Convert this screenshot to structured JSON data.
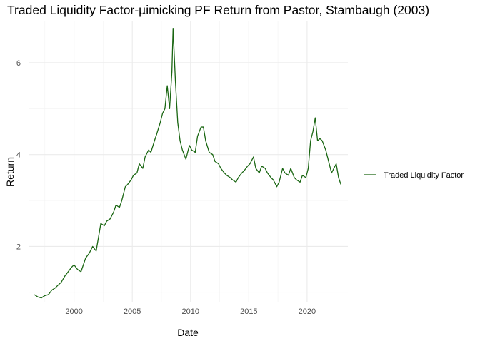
{
  "chart_data": {
    "type": "line",
    "title": "Traded Liquidity Factor-µimicking PF Return from Pastor, Stambaugh (2003)",
    "xlabel": "Date",
    "ylabel": "Return",
    "x_ticks": [
      "2000",
      "2005",
      "2010",
      "2015",
      "2020"
    ],
    "y_ticks": [
      "2",
      "4",
      "6"
    ],
    "xlim": [
      1996.1,
      2023.5
    ],
    "ylim": [
      0.78,
      6.9
    ],
    "grid": true,
    "legend_position": "right",
    "series": [
      {
        "name": "Traded Liquidity Factor",
        "color": "#1a6612",
        "x": [
          1996.6,
          1996.9,
          1997.2,
          1997.5,
          1997.8,
          1998.1,
          1998.4,
          1998.6,
          1998.9,
          1999.2,
          1999.5,
          1999.8,
          2000.0,
          2000.3,
          2000.6,
          2000.8,
          2001.0,
          2001.3,
          2001.6,
          2001.9,
          2002.1,
          2002.3,
          2002.6,
          2002.8,
          2003.1,
          2003.4,
          2003.6,
          2003.9,
          2004.1,
          2004.4,
          2004.6,
          2004.9,
          2005.1,
          2005.4,
          2005.6,
          2005.9,
          2006.1,
          2006.4,
          2006.6,
          2006.9,
          2007.1,
          2007.4,
          2007.6,
          2007.8,
          2008.0,
          2008.2,
          2008.4,
          2008.5,
          2008.7,
          2008.9,
          2009.1,
          2009.3,
          2009.6,
          2009.9,
          2010.1,
          2010.4,
          2010.6,
          2010.9,
          2011.1,
          2011.3,
          2011.6,
          2011.9,
          2012.1,
          2012.4,
          2012.6,
          2012.9,
          2013.1,
          2013.4,
          2013.6,
          2013.9,
          2014.1,
          2014.4,
          2014.6,
          2014.9,
          2015.1,
          2015.4,
          2015.6,
          2015.9,
          2016.1,
          2016.4,
          2016.6,
          2016.9,
          2017.1,
          2017.4,
          2017.6,
          2017.9,
          2018.1,
          2018.4,
          2018.6,
          2018.9,
          2019.1,
          2019.4,
          2019.6,
          2019.9,
          2020.1,
          2020.3,
          2020.5,
          2020.7,
          2020.9,
          2021.1,
          2021.3,
          2021.6,
          2021.9,
          2022.1,
          2022.3,
          2022.5,
          2022.7,
          2022.9
        ],
        "y": [
          0.95,
          0.9,
          0.88,
          0.93,
          0.95,
          1.05,
          1.1,
          1.15,
          1.22,
          1.35,
          1.45,
          1.55,
          1.6,
          1.5,
          1.45,
          1.6,
          1.75,
          1.85,
          2.0,
          1.9,
          2.2,
          2.5,
          2.45,
          2.55,
          2.6,
          2.75,
          2.9,
          2.85,
          3.0,
          3.3,
          3.35,
          3.45,
          3.55,
          3.6,
          3.8,
          3.7,
          3.95,
          4.1,
          4.05,
          4.3,
          4.45,
          4.7,
          4.9,
          5.0,
          5.5,
          5.0,
          5.8,
          6.75,
          5.6,
          4.7,
          4.3,
          4.1,
          3.9,
          4.2,
          4.1,
          4.05,
          4.4,
          4.6,
          4.6,
          4.3,
          4.05,
          4.0,
          3.85,
          3.8,
          3.7,
          3.6,
          3.55,
          3.5,
          3.45,
          3.4,
          3.5,
          3.6,
          3.65,
          3.75,
          3.8,
          3.95,
          3.7,
          3.6,
          3.75,
          3.7,
          3.6,
          3.5,
          3.45,
          3.3,
          3.4,
          3.7,
          3.6,
          3.55,
          3.7,
          3.5,
          3.45,
          3.4,
          3.55,
          3.5,
          3.7,
          4.3,
          4.5,
          4.8,
          4.3,
          4.35,
          4.3,
          4.1,
          3.8,
          3.6,
          3.7,
          3.8,
          3.5,
          3.35
        ]
      }
    ]
  }
}
